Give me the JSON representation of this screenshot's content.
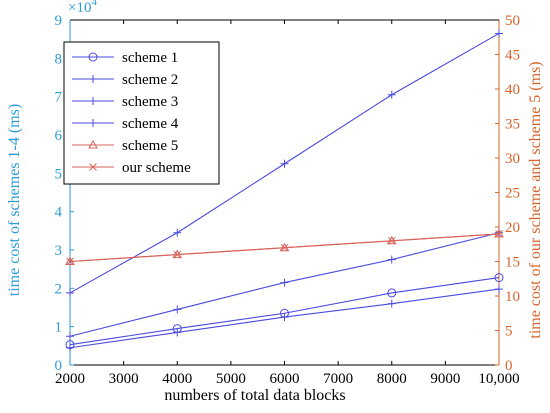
{
  "chart_data": {
    "type": "line",
    "x": [
      2000,
      4000,
      6000,
      8000,
      10000
    ],
    "xlim": [
      2000,
      10000
    ],
    "x_ticks": [
      2000,
      3000,
      4000,
      5000,
      6000,
      7000,
      8000,
      9000,
      10000
    ],
    "x_tick_labels": [
      "2000",
      "3000",
      "4000",
      "5000",
      "6000",
      "7000",
      "8000",
      "9000",
      "10,000"
    ],
    "xlabel": "numbers of total data blocks",
    "ylabel_left": "time cost of schemes 1-4 (ms)",
    "ylabel_right": "time cost of our scheme and scheme 5 (ms)",
    "ylim_left": [
      0,
      90000
    ],
    "left_ticks": [
      0,
      1,
      2,
      3,
      4,
      5,
      6,
      7,
      8,
      9
    ],
    "left_multiplier_text": "×10",
    "left_multiplier_exp": "4",
    "ylim_right": [
      0,
      50
    ],
    "right_ticks": [
      0,
      5,
      10,
      15,
      20,
      25,
      30,
      35,
      40,
      45,
      50
    ],
    "grid": false,
    "legend_position": "top-left",
    "colors": {
      "left_axis": "#2b9cd8",
      "right_axis": "#d9632b",
      "blue": "#4a4ae0",
      "red": "#d9635b"
    },
    "series": [
      {
        "name": "scheme 1",
        "axis": "left",
        "marker": "circle",
        "color": "#4a4ae0",
        "values": [
          5300,
          9500,
          13500,
          18800,
          22800
        ]
      },
      {
        "name": "scheme 2",
        "axis": "left",
        "marker": "plus",
        "color": "#4a4ae0",
        "values": [
          18800,
          34500,
          52500,
          70500,
          86500
        ]
      },
      {
        "name": "scheme 3",
        "axis": "left",
        "marker": "plus",
        "color": "#4a4ae0",
        "values": [
          7500,
          14500,
          21500,
          27500,
          34500
        ]
      },
      {
        "name": "scheme 4",
        "axis": "left",
        "marker": "plus",
        "color": "#4a4ae0",
        "values": [
          4500,
          8500,
          12500,
          16000,
          19800
        ]
      },
      {
        "name": "scheme 5",
        "axis": "right",
        "marker": "triangle",
        "color": "#d9635b",
        "values": [
          15,
          16,
          17,
          18,
          19
        ]
      },
      {
        "name": "our scheme",
        "axis": "right",
        "marker": "x",
        "color": "#d9635b",
        "values": [
          15,
          16,
          17,
          18,
          19
        ]
      }
    ]
  }
}
